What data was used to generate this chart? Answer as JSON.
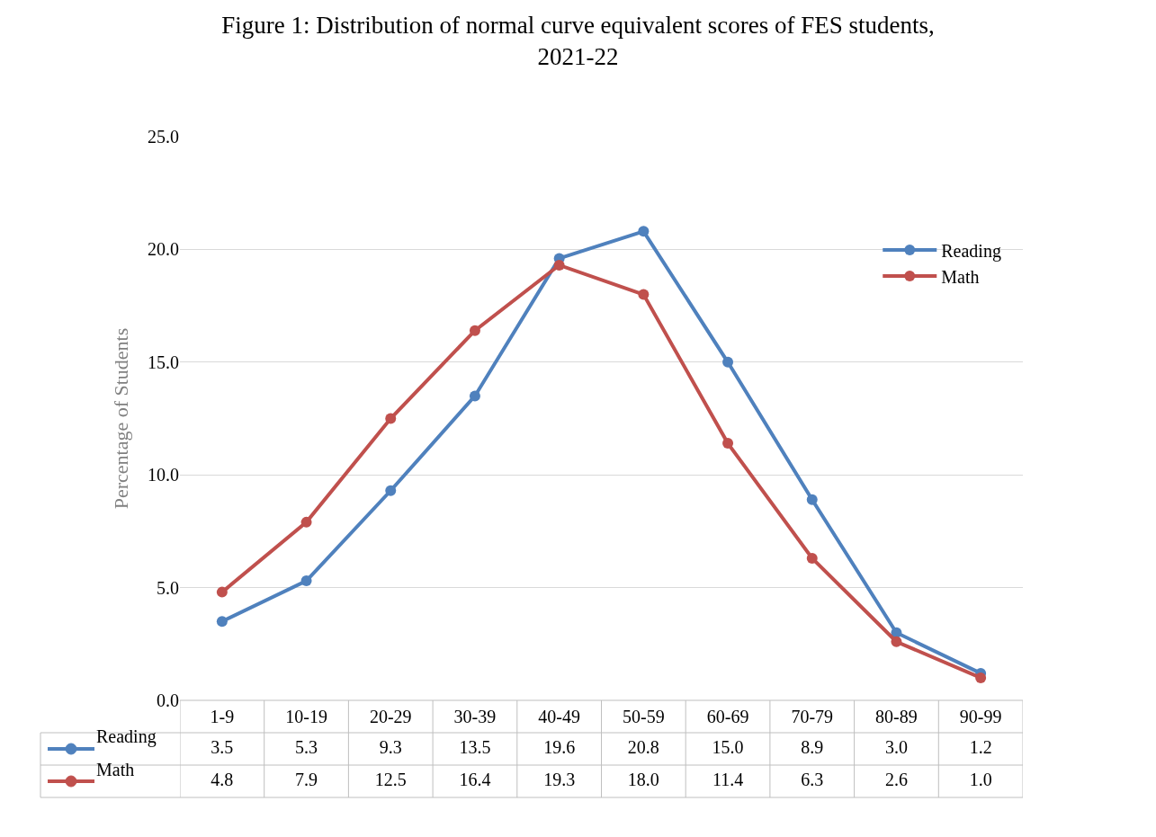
{
  "chart_data": {
    "type": "line",
    "title": "Figure 1: Distribution of normal curve equivalent scores of FES students, 2021-22",
    "ylabel": "Percentage of Students",
    "categories": [
      "1-9",
      "10-19",
      "20-29",
      "30-39",
      "40-49",
      "50-59",
      "60-69",
      "70-79",
      "80-89",
      "90-99"
    ],
    "series": [
      {
        "name": "Reading",
        "color": "#4f81bd",
        "values": [
          3.5,
          5.3,
          9.3,
          13.5,
          19.6,
          20.8,
          15.0,
          8.9,
          3.0,
          1.2
        ],
        "value_labels": [
          "3.5",
          "5.3",
          "9.3",
          "13.5",
          "19.6",
          "20.8",
          "15.0",
          "8.9",
          "3.0",
          "1.2"
        ]
      },
      {
        "name": "Math",
        "color": "#c0504d",
        "values": [
          4.8,
          7.9,
          12.5,
          16.4,
          19.3,
          18.0,
          11.4,
          6.3,
          2.6,
          1.0
        ],
        "value_labels": [
          "4.8",
          "7.9",
          "12.5",
          "16.4",
          "19.3",
          "18.0",
          "11.4",
          "6.3",
          "2.6",
          "1.0"
        ]
      }
    ],
    "ylim": [
      0,
      25
    ],
    "yticks": [
      {
        "value": 0,
        "label": "0.0"
      },
      {
        "value": 5,
        "label": "5.0"
      },
      {
        "value": 10,
        "label": "10.0"
      },
      {
        "value": 15,
        "label": "15.0"
      },
      {
        "value": 20,
        "label": "20.0"
      },
      {
        "value": 25,
        "label": "25.0"
      }
    ],
    "grid": "y",
    "legend": "top right",
    "marker": "circle",
    "line_style": "solid"
  }
}
